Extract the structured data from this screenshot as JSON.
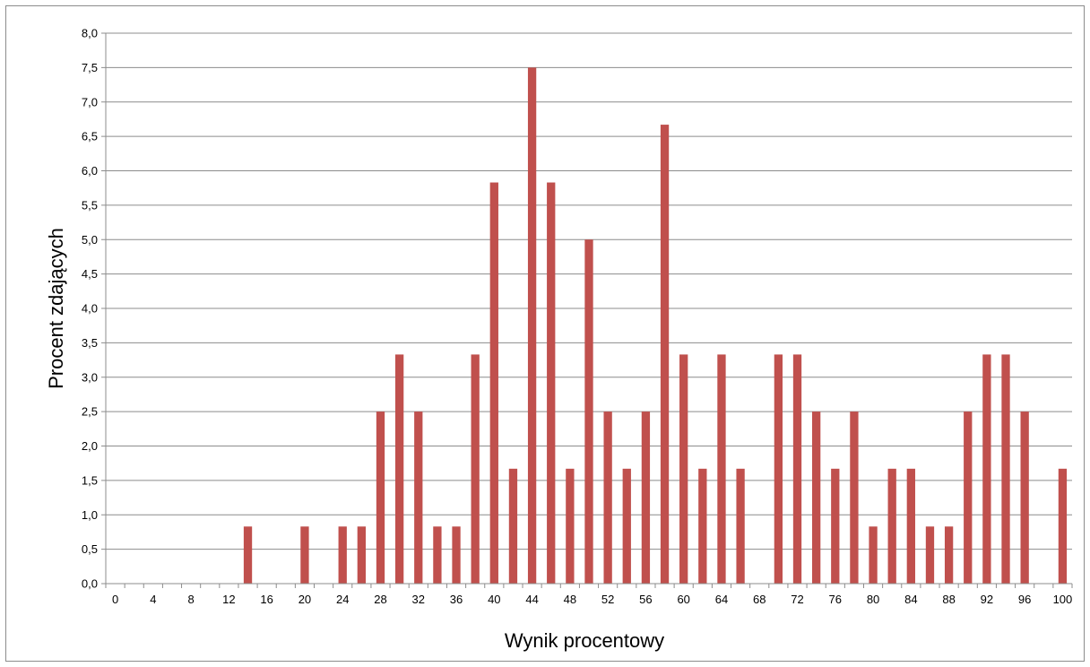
{
  "chart_data": {
    "type": "bar",
    "title": "",
    "xlabel": "Wynik procentowy",
    "ylabel": "Procent zdających",
    "ylim": [
      0,
      8
    ],
    "grid": true,
    "legend": "none",
    "bar_color": "#c0504d",
    "categories": [
      "0",
      "2",
      "4",
      "6",
      "8",
      "10",
      "12",
      "14",
      "16",
      "18",
      "20",
      "22",
      "24",
      "26",
      "28",
      "30",
      "32",
      "34",
      "36",
      "38",
      "40",
      "42",
      "44",
      "46",
      "48",
      "50",
      "52",
      "54",
      "56",
      "58",
      "60",
      "62",
      "64",
      "66",
      "68",
      "70",
      "72",
      "74",
      "76",
      "78",
      "80",
      "82",
      "84",
      "86",
      "88",
      "90",
      "92",
      "94",
      "96",
      "98",
      "100"
    ],
    "x_tick_labels": [
      "0",
      "4",
      "8",
      "12",
      "16",
      "20",
      "24",
      "28",
      "32",
      "36",
      "40",
      "44",
      "48",
      "52",
      "56",
      "60",
      "64",
      "68",
      "72",
      "76",
      "80",
      "84",
      "88",
      "92",
      "96",
      "100"
    ],
    "y_tick_labels": [
      "0,0",
      "0,5",
      "1,0",
      "1,5",
      "2,0",
      "2,5",
      "3,0",
      "3,5",
      "4,0",
      "4,5",
      "5,0",
      "5,5",
      "6,0",
      "6,5",
      "7,0",
      "7,5",
      "8,0"
    ],
    "values": [
      0,
      0,
      0,
      0,
      0,
      0,
      0,
      0.83,
      0,
      0,
      0.83,
      0,
      0.83,
      0.83,
      2.5,
      3.33,
      2.5,
      0.83,
      0.83,
      3.33,
      5.83,
      1.67,
      7.5,
      5.83,
      1.67,
      5.0,
      2.5,
      1.67,
      2.5,
      6.67,
      3.33,
      1.67,
      3.33,
      1.67,
      0,
      3.33,
      3.33,
      2.5,
      1.67,
      2.5,
      0.83,
      1.67,
      1.67,
      0.83,
      0.83,
      2.5,
      3.33,
      3.33,
      2.5,
      0,
      1.67
    ]
  }
}
